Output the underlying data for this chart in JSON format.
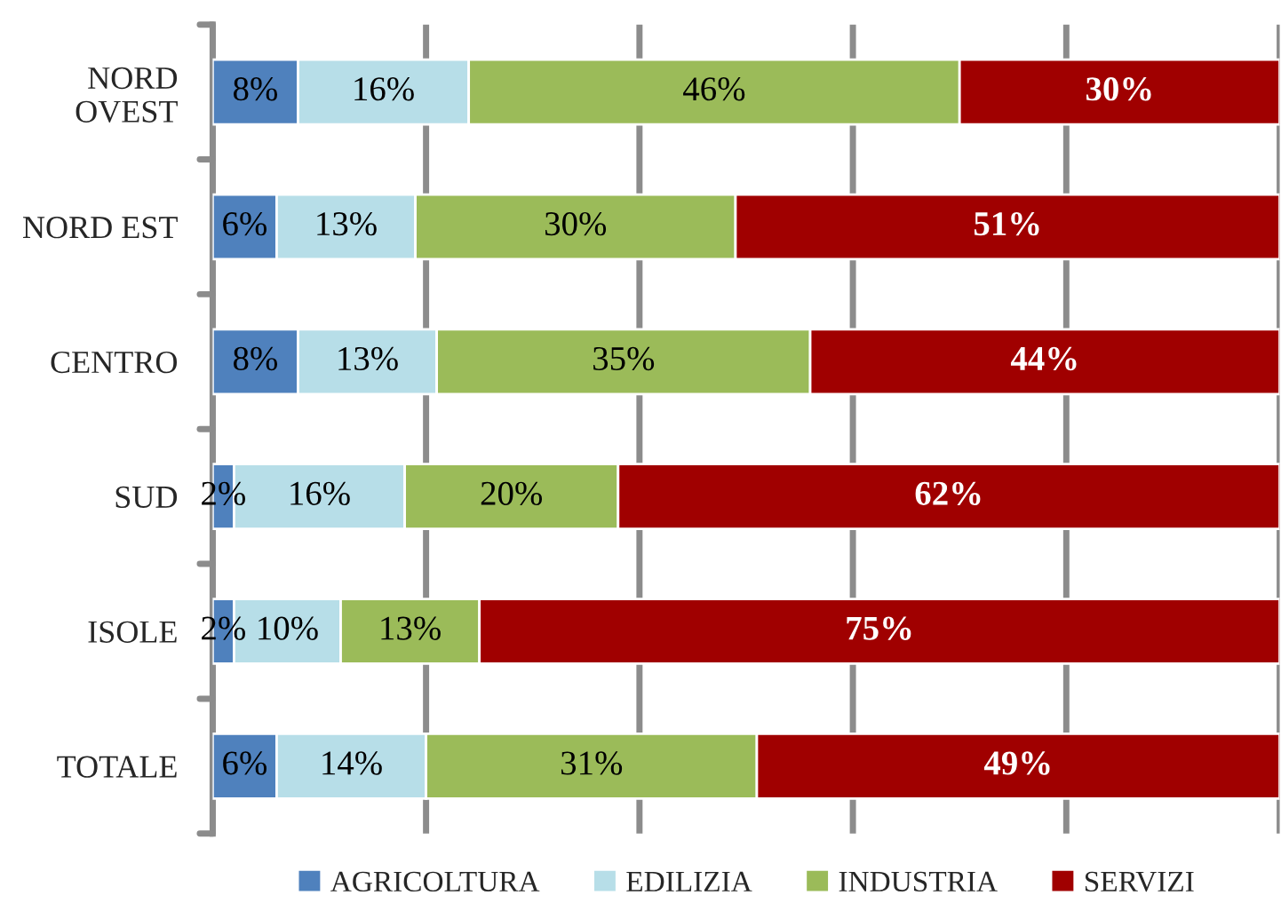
{
  "chart_data": {
    "type": "bar",
    "orientation": "horizontal",
    "stacked": true,
    "categories": [
      "NORD\nOVEST",
      "NORD EST",
      "CENTRO",
      "SUD",
      "ISOLE",
      "TOTALE"
    ],
    "series": [
      {
        "name": "AGRICOLTURA",
        "color": "#4f81bd",
        "values": [
          8,
          6,
          8,
          2,
          2,
          6
        ],
        "value_labels": [
          "8%",
          "6%",
          "8%",
          "2%",
          "2%",
          "6%"
        ]
      },
      {
        "name": "EDILIZIA",
        "color": "#b7dee8",
        "values": [
          16,
          13,
          13,
          16,
          10,
          14
        ],
        "value_labels": [
          "16%",
          "13%",
          "13%",
          "16%",
          "10%",
          "14%"
        ]
      },
      {
        "name": "INDUSTRIA",
        "color": "#9bbb59",
        "values": [
          46,
          30,
          35,
          20,
          13,
          31
        ],
        "value_labels": [
          "46%",
          "30%",
          "35%",
          "20%",
          "13%",
          "31%"
        ]
      },
      {
        "name": "SERVIZI",
        "color": "#a00000",
        "values": [
          30,
          51,
          44,
          62,
          75,
          49
        ],
        "value_labels": [
          "30%",
          "51%",
          "44%",
          "62%",
          "75%",
          "49%"
        ]
      }
    ],
    "xlim": [
      0,
      100
    ],
    "xticks": [
      {
        "value": 0,
        "label": null
      },
      {
        "value": 20,
        "label": null
      },
      {
        "value": 40,
        "label": null
      },
      {
        "value": 60,
        "label": null
      },
      {
        "value": 80,
        "label": null
      },
      {
        "value": 100,
        "label": null
      }
    ],
    "tick_labels": "y",
    "grid": "x",
    "legend": "bottom"
  }
}
